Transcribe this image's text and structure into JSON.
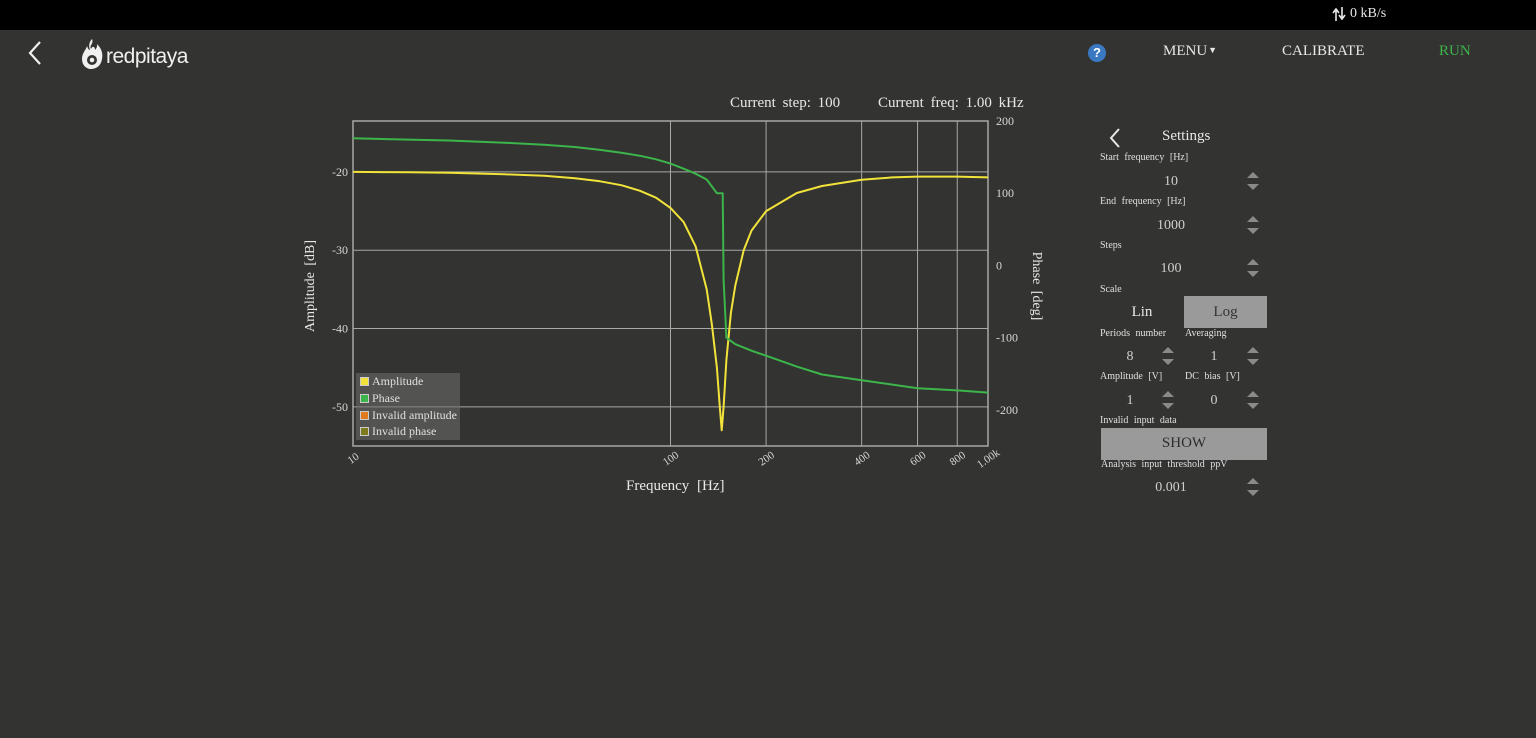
{
  "topbar": {
    "net_speed": "0 kB/s"
  },
  "header": {
    "logo_text": "redpitaya",
    "help_label": "?",
    "menu_label": "MENU",
    "calibrate_label": "CALIBRATE",
    "run_label": "RUN",
    "run_color": "#3cb54a"
  },
  "status": {
    "current_step": "Current step: 100",
    "current_freq": "Current freq: 1.00 kHz"
  },
  "chart_data": {
    "type": "line",
    "x_scale": "log",
    "xlabel": "Frequency [Hz]",
    "ylabel_left": "Amplitude [dB]",
    "ylabel_right": "Phase [deg]",
    "xlim": [
      10,
      1000
    ],
    "ylim_left": [
      -55,
      -13.5
    ],
    "ylim_right": [
      -250,
      200
    ],
    "x_ticks": [
      10,
      100,
      200,
      400,
      600,
      800,
      1000
    ],
    "x_tick_labels": [
      "10",
      "100",
      "200",
      "400",
      "600",
      "800",
      "1.00k"
    ],
    "y_left_ticks": [
      -20,
      -30,
      -40,
      -50
    ],
    "y_left_tick_labels": [
      "-20",
      "-30",
      "-40",
      "-50"
    ],
    "y_right_ticks": [
      200,
      100,
      0,
      -100,
      -200
    ],
    "y_right_tick_labels": [
      "200",
      "100",
      "0",
      "-100",
      "-200"
    ],
    "grid": true,
    "legend_position": "bottom-left",
    "legend": [
      {
        "name": "Amplitude",
        "color": "#f2e33a"
      },
      {
        "name": "Phase",
        "color": "#3cb54a"
      },
      {
        "name": "Invalid amplitude",
        "color": "#e07a1f"
      },
      {
        "name": "Invalid phase",
        "color": "#7d7a1f"
      }
    ],
    "series": [
      {
        "name": "Amplitude",
        "axis": "left",
        "color": "#f2e33a",
        "x": [
          10,
          15,
          20,
          30,
          40,
          50,
          60,
          70,
          80,
          90,
          100,
          110,
          120,
          130,
          135,
          140,
          143,
          145,
          147,
          150,
          155,
          160,
          170,
          180,
          200,
          250,
          300,
          400,
          500,
          600,
          800,
          1000
        ],
        "y": [
          -20.0,
          -20.05,
          -20.1,
          -20.3,
          -20.5,
          -20.8,
          -21.2,
          -21.7,
          -22.4,
          -23.3,
          -24.6,
          -26.4,
          -29.5,
          -35.0,
          -39.5,
          -45.0,
          -50.0,
          -53.0,
          -50.0,
          -44.0,
          -38.0,
          -34.5,
          -30.0,
          -27.5,
          -25.0,
          -22.7,
          -21.8,
          -21.0,
          -20.7,
          -20.6,
          -20.6,
          -20.7
        ]
      },
      {
        "name": "Phase",
        "axis": "right",
        "color": "#3cb54a",
        "x": [
          10,
          20,
          30,
          40,
          50,
          60,
          70,
          80,
          90,
          100,
          110,
          120,
          130,
          140,
          145,
          146,
          147,
          150,
          160,
          180,
          200,
          250,
          300,
          400,
          500,
          600,
          800,
          1000
        ],
        "y": [
          176,
          173,
          170,
          167,
          164,
          160,
          156,
          152,
          147,
          141,
          134,
          127,
          119,
          100,
          100,
          100,
          -20,
          -100,
          -109,
          -118,
          -125,
          -140,
          -151,
          -159,
          -165,
          -170,
          -173,
          -176
        ]
      }
    ]
  },
  "settings": {
    "title": "Settings",
    "start_frequency_label": "Start frequency [Hz]",
    "start_frequency_value": "10",
    "end_frequency_label": "End frequency [Hz]",
    "end_frequency_value": "1000",
    "steps_label": "Steps",
    "steps_value": "100",
    "scale_label": "Scale",
    "scale_lin": "Lin",
    "scale_log": "Log",
    "periods_label": "Periods number",
    "periods_value": "8",
    "averaging_label": "Averaging",
    "averaging_value": "1",
    "amplitude_label": "Amplitude [V]",
    "amplitude_value": "1",
    "dc_bias_label": "DC bias [V]",
    "dc_bias_value": "0",
    "invalid_data_label": "Invalid input data",
    "show_label": "SHOW",
    "threshold_label": "Analysis input threshold ppV",
    "threshold_value": "0.001"
  }
}
